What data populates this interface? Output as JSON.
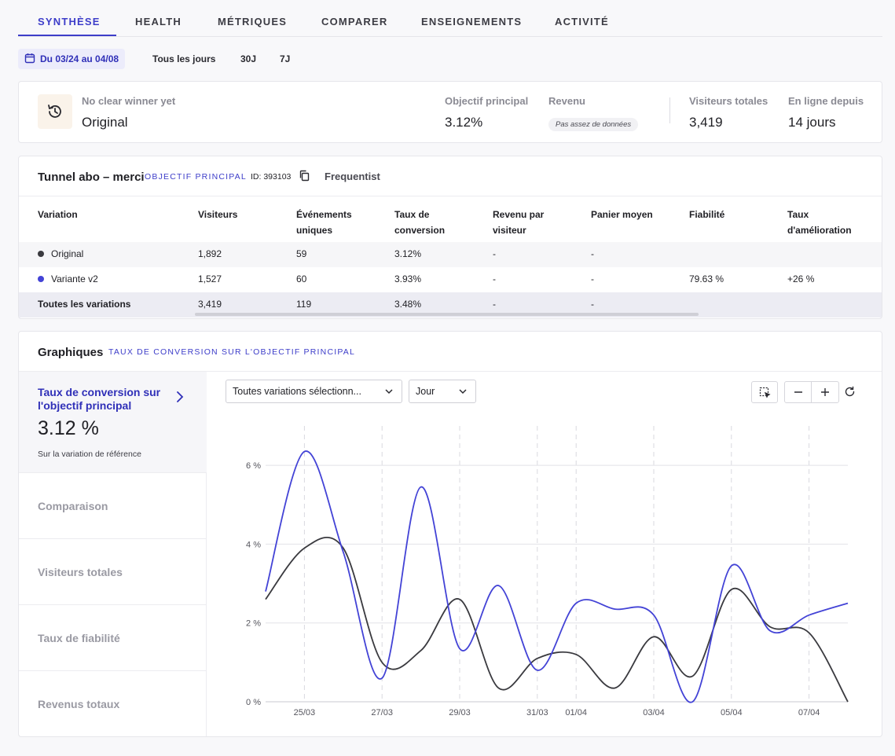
{
  "tabs": [
    {
      "label": "SYNTHÈSE"
    },
    {
      "label": "HEALTH"
    },
    {
      "label": "MÉTRIQUES"
    },
    {
      "label": "COMPARER"
    },
    {
      "label": "ENSEIGNEMENTS"
    },
    {
      "label": "ACTIVITÉ"
    }
  ],
  "date": {
    "range_label": "Du 03/24 au 04/08",
    "ranges": [
      "Tous les jours",
      "30J",
      "7J"
    ]
  },
  "summary": {
    "winner_label": "No clear winner yet",
    "winner_value": "Original",
    "objective_label": "Objectif principal",
    "objective_value": "3.12%",
    "revenue_label": "Revenu",
    "revenue_value": "Pas assez de données",
    "visitors_label": "Visiteurs totales",
    "visitors_value": "3,419",
    "online_label": "En ligne depuis",
    "online_value": "14 jours"
  },
  "tunnel": {
    "title": "Tunnel abo – merci",
    "objective_tag": "OBJECTIF PRINCIPAL",
    "id_label": "ID: 393103",
    "method": "Frequentist",
    "headers": [
      "Variation",
      "Visiteurs",
      "Événements uniques",
      "Taux de conversion",
      "Revenu par visiteur",
      "Panier moyen",
      "Fiabilité",
      "Taux d'amélioration"
    ],
    "rows": [
      {
        "name": "Original",
        "color": "#3a3a3f",
        "cells": [
          "1,892",
          "59",
          "3.12%",
          "-",
          "-",
          "",
          ""
        ]
      },
      {
        "name": "Variante v2",
        "color": "#4343d6",
        "cells": [
          "1,527",
          "60",
          "3.93%",
          "-",
          "-",
          "79.63 %",
          "+26 %"
        ]
      },
      {
        "name": "Toutes les variations",
        "color": "",
        "cells": [
          "3,419",
          "119",
          "3.48%",
          "-",
          "-",
          "",
          ""
        ]
      }
    ]
  },
  "graph": {
    "title": "Graphiques",
    "subtitle": "TAUX DE CONVERSION SUR L'OBJECTIF PRINCIPAL",
    "side_active_title": "Taux de conversion sur l'objectif principal",
    "side_active_value": "3.12 %",
    "side_active_note": "Sur la variation de référence",
    "side_items": [
      "Comparaison",
      "Visiteurs totales",
      "Taux de fiabilité",
      "Revenus totaux"
    ],
    "variation_select": "Toutes variations sélectionn...",
    "period_select": "Jour"
  },
  "chart_data": {
    "type": "line",
    "x": [
      "24/03",
      "25/03",
      "26/03",
      "27/03",
      "28/03",
      "29/03",
      "30/03",
      "31/03",
      "01/04",
      "02/04",
      "03/04",
      "04/04",
      "05/04",
      "06/04",
      "07/04",
      "08/04"
    ],
    "x_tick_labels": [
      "25/03",
      "27/03",
      "29/03",
      "31/03",
      "01/04",
      "03/04",
      "05/04",
      "07/04"
    ],
    "y_ticks": [
      "0 %",
      "2 %",
      "4 %",
      "6 %"
    ],
    "ylim": [
      0,
      7
    ],
    "grid": true,
    "series": [
      {
        "name": "Original",
        "color": "#3a3a3f",
        "values": [
          2.6,
          3.9,
          3.9,
          1.0,
          1.3,
          2.6,
          0.35,
          1.1,
          1.2,
          0.35,
          1.65,
          0.65,
          2.85,
          1.9,
          1.75,
          0.0
        ]
      },
      {
        "name": "Variante v2",
        "color": "#4343d6",
        "values": [
          2.8,
          6.35,
          3.8,
          0.6,
          5.45,
          1.35,
          2.95,
          0.8,
          2.5,
          2.35,
          2.2,
          0.0,
          3.45,
          1.8,
          2.2,
          2.5
        ]
      }
    ]
  }
}
